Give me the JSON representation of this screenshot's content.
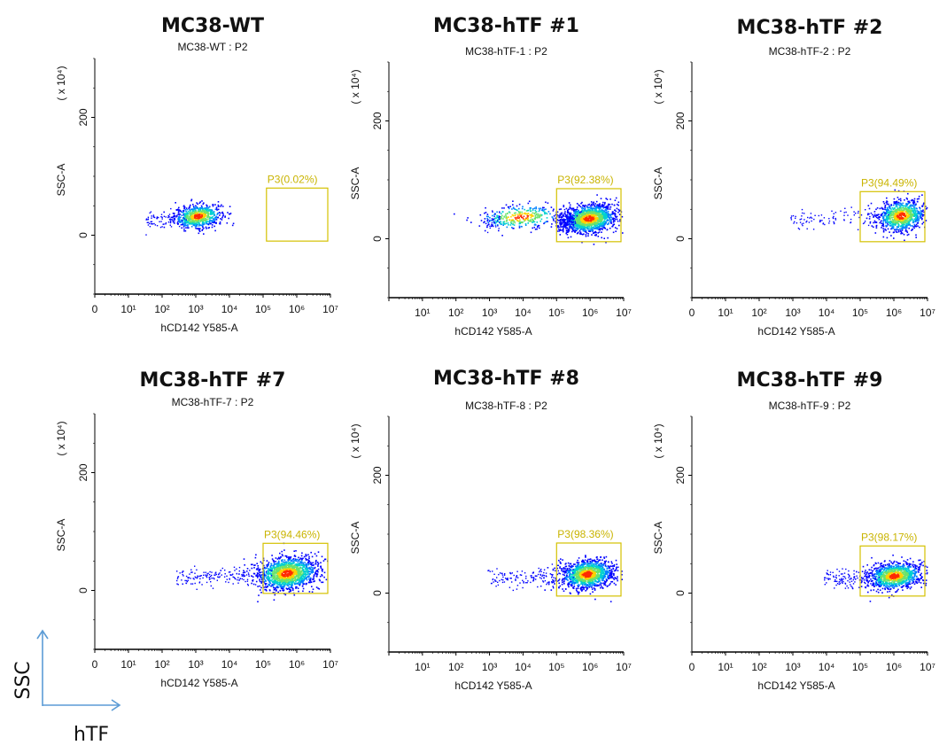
{
  "legend": {
    "y_label": "SSC",
    "x_label": "hTF",
    "arrow_color": "#5b9bd5"
  },
  "colors": {
    "gate": "#d4c100",
    "density_low": "#0000ff",
    "density_mid": "#00d0d0",
    "density_high": "#ffd200",
    "density_peak": "#ff2a00"
  },
  "chart_data": [
    {
      "type": "scatter",
      "title": "MC38-WT",
      "subtitle": "MC38-WT : P2",
      "xlabel": "hCD142 Y585-A",
      "ylabel": "SSC-A",
      "y_multiplier": "( x 10⁴)",
      "xscale": "log",
      "xlim": [
        0,
        7
      ],
      "ylim": [
        -100,
        300
      ],
      "x_ticks": [
        "0",
        "10¹",
        "10²",
        "10³",
        "10⁴",
        "10⁵",
        "10⁶",
        "10⁷"
      ],
      "y_ticks": [
        "0",
        "200"
      ],
      "gate": {
        "name": "P3",
        "label": "P3(0.02%)",
        "percent": 0.02,
        "x_range": [
          5.1,
          7.0
        ],
        "y_range": [
          -10,
          80
        ]
      },
      "populations": [
        {
          "center_log_x": 3.05,
          "center_y": 33,
          "spread_x": 0.35,
          "spread_y": 10,
          "count": 700,
          "tail_to_log_x": 1.5
        }
      ]
    },
    {
      "type": "scatter",
      "title": "MC38-hTF #1",
      "subtitle": "MC38-hTF-1 : P2",
      "xlabel": "hCD142 Y585-A",
      "ylabel": "SSC-A",
      "y_multiplier": "( x 10⁴)",
      "xscale": "log",
      "xlim": [
        0,
        7
      ],
      "ylim": [
        -100,
        300
      ],
      "x_ticks": [
        "",
        "10¹",
        "10²",
        "10³",
        "10⁴",
        "10⁵",
        "10⁶",
        "10⁷"
      ],
      "y_ticks": [
        "0",
        "200"
      ],
      "gate": {
        "name": "P3",
        "label": "P3(92.38%)",
        "percent": 92.38,
        "x_range": [
          5.0,
          7.0
        ],
        "y_range": [
          -5,
          85
        ]
      },
      "populations": [
        {
          "center_log_x": 5.95,
          "center_y": 35,
          "spread_x": 0.4,
          "spread_y": 12,
          "count": 1400,
          "tail_to_log_x": 5.0
        },
        {
          "center_log_x": 3.9,
          "center_y": 38,
          "spread_x": 0.6,
          "spread_y": 10,
          "count": 350,
          "tail_to_log_x": 2.9
        }
      ]
    },
    {
      "type": "scatter",
      "title": "MC38-hTF #2",
      "subtitle": "MC38-hTF-2 : P2",
      "xlabel": "hCD142 Y585-A",
      "ylabel": "SSC-A",
      "y_multiplier": "( x 10⁴)",
      "xscale": "log",
      "xlim": [
        0,
        7
      ],
      "ylim": [
        -100,
        300
      ],
      "x_ticks": [
        "0",
        "10¹",
        "10²",
        "10³",
        "10⁴",
        "10⁵",
        "10⁶",
        "10⁷"
      ],
      "y_ticks": [
        "0",
        "200"
      ],
      "gate": {
        "name": "P3",
        "label": "P3(94.49%)",
        "percent": 94.49,
        "x_range": [
          5.0,
          7.0
        ],
        "y_range": [
          -5,
          80
        ]
      },
      "populations": [
        {
          "center_log_x": 6.2,
          "center_y": 40,
          "spread_x": 0.35,
          "spread_y": 13,
          "count": 900,
          "tail_to_log_x": 2.9
        }
      ]
    },
    {
      "type": "scatter",
      "title": "MC38-hTF #7",
      "subtitle": "MC38-hTF-7 : P2",
      "xlabel": "hCD142 Y585-A",
      "ylabel": "SSC-A",
      "y_multiplier": "( x 10⁴)",
      "xscale": "log",
      "xlim": [
        0,
        7
      ],
      "ylim": [
        -100,
        300
      ],
      "x_ticks": [
        "0",
        "10¹",
        "10²",
        "10³",
        "10⁴",
        "10⁵",
        "10⁶",
        "10⁷"
      ],
      "y_ticks": [
        "0",
        "200"
      ],
      "gate": {
        "name": "P3",
        "label": "P3(94.46%)",
        "percent": 94.46,
        "x_range": [
          5.0,
          7.0
        ],
        "y_range": [
          -5,
          80
        ]
      },
      "populations": [
        {
          "center_log_x": 5.7,
          "center_y": 30,
          "spread_x": 0.45,
          "spread_y": 14,
          "count": 1500,
          "tail_to_log_x": 2.4
        }
      ]
    },
    {
      "type": "scatter",
      "title": "MC38-hTF #8",
      "subtitle": "MC38-hTF-8 : P2",
      "xlabel": "hCD142 Y585-A",
      "ylabel": "SSC-A",
      "y_multiplier": "( x 10⁴)",
      "xscale": "log",
      "xlim": [
        0,
        7
      ],
      "ylim": [
        -100,
        300
      ],
      "x_ticks": [
        "",
        "10¹",
        "10²",
        "10³",
        "10⁴",
        "10⁵",
        "10⁶",
        "10⁷"
      ],
      "y_ticks": [
        "0",
        "200"
      ],
      "gate": {
        "name": "P3",
        "label": "P3(98.36%)",
        "percent": 98.36,
        "x_range": [
          5.0,
          7.0
        ],
        "y_range": [
          -5,
          85
        ]
      },
      "populations": [
        {
          "center_log_x": 5.9,
          "center_y": 33,
          "spread_x": 0.38,
          "spread_y": 12,
          "count": 1300,
          "tail_to_log_x": 2.9
        }
      ]
    },
    {
      "type": "scatter",
      "title": "MC38-hTF #9",
      "subtitle": "MC38-hTF-9 : P2",
      "xlabel": "hCD142 Y585-A",
      "ylabel": "SSC-A",
      "y_multiplier": "( x 10⁴)",
      "xscale": "log",
      "xlim": [
        0,
        7
      ],
      "ylim": [
        -100,
        300
      ],
      "x_ticks": [
        "0",
        "10¹",
        "10²",
        "10³",
        "10⁴",
        "10⁵",
        "10⁶",
        "10⁷"
      ],
      "y_ticks": [
        "0",
        "200"
      ],
      "gate": {
        "name": "P3",
        "label": "P3(98.17%)",
        "percent": 98.17,
        "x_range": [
          5.0,
          7.0
        ],
        "y_range": [
          -5,
          80
        ]
      },
      "populations": [
        {
          "center_log_x": 6.0,
          "center_y": 30,
          "spread_x": 0.4,
          "spread_y": 11,
          "count": 1100,
          "tail_to_log_x": 3.9
        }
      ]
    }
  ]
}
